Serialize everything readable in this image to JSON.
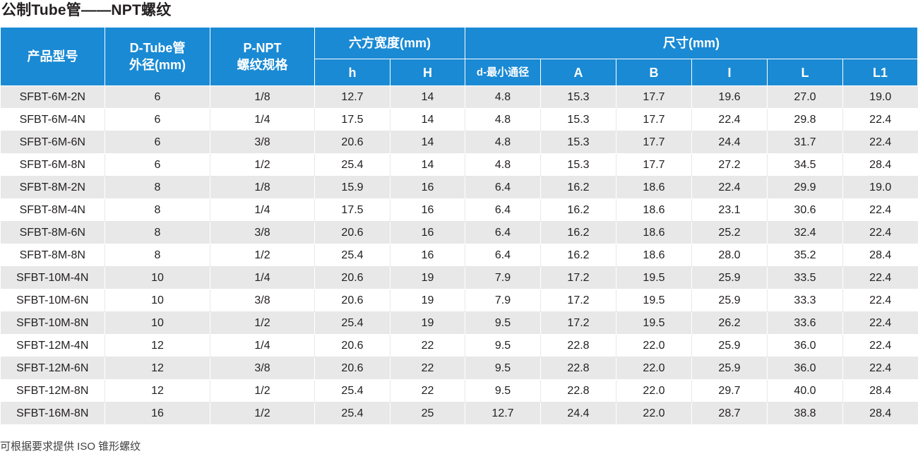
{
  "title": "公制Tube管——NPT螺纹",
  "table": {
    "header": {
      "model": "产品型号",
      "tube_od_line1": "D-Tube管",
      "tube_od_line2": "外径(mm)",
      "thread_line1": "P-NPT",
      "thread_line2": "螺纹规格",
      "hex_width": "六方宽度(mm)",
      "dimensions": "尺寸(mm)",
      "sub": {
        "h": "h",
        "H": "H",
        "d": "d-最小通径",
        "A": "A",
        "B": "B",
        "I": "I",
        "L": "L",
        "L1": "L1"
      }
    },
    "rows": [
      {
        "model": "SFBT-6M-2N",
        "D": "6",
        "P": "1/8",
        "h": "12.7",
        "H": "14",
        "d": "4.8",
        "A": "15.3",
        "B": "17.7",
        "I": "19.6",
        "L": "27.0",
        "L1": "19.0"
      },
      {
        "model": "SFBT-6M-4N",
        "D": "6",
        "P": "1/4",
        "h": "17.5",
        "H": "14",
        "d": "4.8",
        "A": "15.3",
        "B": "17.7",
        "I": "22.4",
        "L": "29.8",
        "L1": "22.4"
      },
      {
        "model": "SFBT-6M-6N",
        "D": "6",
        "P": "3/8",
        "h": "20.6",
        "H": "14",
        "d": "4.8",
        "A": "15.3",
        "B": "17.7",
        "I": "24.4",
        "L": "31.7",
        "L1": "22.4"
      },
      {
        "model": "SFBT-6M-8N",
        "D": "6",
        "P": "1/2",
        "h": "25.4",
        "H": "14",
        "d": "4.8",
        "A": "15.3",
        "B": "17.7",
        "I": "27.2",
        "L": "34.5",
        "L1": "28.4"
      },
      {
        "model": "SFBT-8M-2N",
        "D": "8",
        "P": "1/8",
        "h": "15.9",
        "H": "16",
        "d": "6.4",
        "A": "16.2",
        "B": "18.6",
        "I": "22.4",
        "L": "29.9",
        "L1": "19.0"
      },
      {
        "model": "SFBT-8M-4N",
        "D": "8",
        "P": "1/4",
        "h": "17.5",
        "H": "16",
        "d": "6.4",
        "A": "16.2",
        "B": "18.6",
        "I": "23.1",
        "L": "30.6",
        "L1": "22.4"
      },
      {
        "model": "SFBT-8M-6N",
        "D": "8",
        "P": "3/8",
        "h": "20.6",
        "H": "16",
        "d": "6.4",
        "A": "16.2",
        "B": "18.6",
        "I": "25.2",
        "L": "32.4",
        "L1": "22.4"
      },
      {
        "model": "SFBT-8M-8N",
        "D": "8",
        "P": "1/2",
        "h": "25.4",
        "H": "16",
        "d": "6.4",
        "A": "16.2",
        "B": "18.6",
        "I": "28.0",
        "L": "35.2",
        "L1": "28.4"
      },
      {
        "model": "SFBT-10M-4N",
        "D": "10",
        "P": "1/4",
        "h": "20.6",
        "H": "19",
        "d": "7.9",
        "A": "17.2",
        "B": "19.5",
        "I": "25.9",
        "L": "33.5",
        "L1": "22.4"
      },
      {
        "model": "SFBT-10M-6N",
        "D": "10",
        "P": "3/8",
        "h": "20.6",
        "H": "19",
        "d": "7.9",
        "A": "17.2",
        "B": "19.5",
        "I": "25.9",
        "L": "33.3",
        "L1": "22.4"
      },
      {
        "model": "SFBT-10M-8N",
        "D": "10",
        "P": "1/2",
        "h": "25.4",
        "H": "19",
        "d": "9.5",
        "A": "17.2",
        "B": "19.5",
        "I": "26.2",
        "L": "33.6",
        "L1": "22.4"
      },
      {
        "model": "SFBT-12M-4N",
        "D": "12",
        "P": "1/4",
        "h": "20.6",
        "H": "22",
        "d": "9.5",
        "A": "22.8",
        "B": "22.0",
        "I": "25.9",
        "L": "36.0",
        "L1": "22.4"
      },
      {
        "model": "SFBT-12M-6N",
        "D": "12",
        "P": "3/8",
        "h": "20.6",
        "H": "22",
        "d": "9.5",
        "A": "22.8",
        "B": "22.0",
        "I": "25.9",
        "L": "36.0",
        "L1": "22.4"
      },
      {
        "model": "SFBT-12M-8N",
        "D": "12",
        "P": "1/2",
        "h": "25.4",
        "H": "22",
        "d": "9.5",
        "A": "22.8",
        "B": "22.0",
        "I": "29.7",
        "L": "40.0",
        "L1": "28.4"
      },
      {
        "model": "SFBT-16M-8N",
        "D": "16",
        "P": "1/2",
        "h": "25.4",
        "H": "25",
        "d": "12.7",
        "A": "24.4",
        "B": "22.0",
        "I": "28.7",
        "L": "38.8",
        "L1": "28.4"
      }
    ]
  },
  "footnote": "可根据要求提供 ISO 锥形螺纹",
  "colors": {
    "header_bg": "#1a8ad4",
    "header_text": "#ffffff",
    "row_shade": "#e8e8e9",
    "text": "#231f20"
  }
}
